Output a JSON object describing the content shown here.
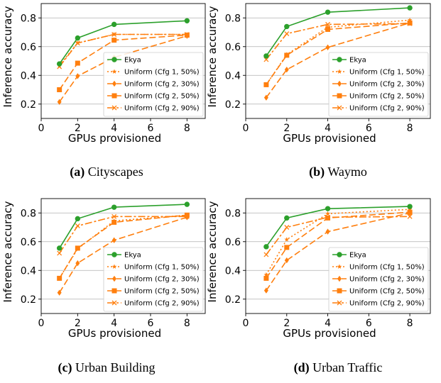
{
  "captions": [
    {
      "tag": "(a)",
      "text": "Cityscapes"
    },
    {
      "tag": "(b)",
      "text": "Waymo"
    },
    {
      "tag": "(c)",
      "text": "Urban Building"
    },
    {
      "tag": "(d)",
      "text": "Urban Traffic"
    }
  ],
  "chart_data": [
    {
      "type": "line",
      "title": "",
      "xlabel": "GPUs provisioned",
      "ylabel": "Inference accuracy",
      "x": [
        1,
        2,
        4,
        8
      ],
      "xlim": [
        0,
        9
      ],
      "ylim": [
        0.1,
        0.9
      ],
      "xticks": [
        "0",
        "2",
        "4",
        "6",
        "8"
      ],
      "yticks": [
        "0.2",
        "0.4",
        "0.6",
        "0.8"
      ],
      "grid": true,
      "legend": "lower-right",
      "series": [
        {
          "name": "Ekya",
          "color": "#2ca02c",
          "values": [
            0.48,
            0.66,
            0.755,
            0.78
          ]
        },
        {
          "name": "Uniform (Cfg 1, 50%)",
          "color": "#ff7f0e",
          "values": [
            0.47,
            0.625,
            0.685,
            0.685
          ]
        },
        {
          "name": "Uniform (Cfg 2, 30%)",
          "color": "#ff7f0e",
          "values": [
            0.215,
            0.395,
            0.525,
            0.675
          ]
        },
        {
          "name": "Uniform (Cfg 2, 50%)",
          "color": "#ff7f0e",
          "values": [
            0.3,
            0.485,
            0.645,
            0.68
          ]
        },
        {
          "name": "Uniform (Cfg 2, 90%)",
          "color": "#ff7f0e",
          "values": [
            0.46,
            0.625,
            0.685,
            0.685
          ]
        }
      ]
    },
    {
      "type": "line",
      "title": "",
      "xlabel": "GPUs provisioned",
      "ylabel": "Inference accuracy",
      "x": [
        1,
        2,
        4,
        8
      ],
      "xlim": [
        0,
        9
      ],
      "ylim": [
        0.1,
        0.9
      ],
      "xticks": [
        "0",
        "2",
        "4",
        "6",
        "8"
      ],
      "yticks": [
        "0.2",
        "0.4",
        "0.6",
        "0.8"
      ],
      "grid": true,
      "legend": "lower-right",
      "series": [
        {
          "name": "Ekya",
          "color": "#2ca02c",
          "values": [
            0.535,
            0.74,
            0.84,
            0.87
          ]
        },
        {
          "name": "Uniform (Cfg 1, 50%)",
          "color": "#ff7f0e",
          "values": [
            0.335,
            0.545,
            0.735,
            0.785
          ]
        },
        {
          "name": "Uniform (Cfg 2, 30%)",
          "color": "#ff7f0e",
          "values": [
            0.245,
            0.44,
            0.595,
            0.765
          ]
        },
        {
          "name": "Uniform (Cfg 2, 50%)",
          "color": "#ff7f0e",
          "values": [
            0.335,
            0.54,
            0.72,
            0.765
          ]
        },
        {
          "name": "Uniform (Cfg 2, 90%)",
          "color": "#ff7f0e",
          "values": [
            0.51,
            0.69,
            0.755,
            0.76
          ]
        }
      ]
    },
    {
      "type": "line",
      "title": "",
      "xlabel": "GPUs provisioned",
      "ylabel": "Inference accuracy",
      "x": [
        1,
        2,
        4,
        8
      ],
      "xlim": [
        0,
        9
      ],
      "ylim": [
        0.1,
        0.9
      ],
      "xticks": [
        "0",
        "2",
        "4",
        "6",
        "8"
      ],
      "yticks": [
        "0.2",
        "0.4",
        "0.6",
        "0.8"
      ],
      "grid": true,
      "legend": "lower-right",
      "series": [
        {
          "name": "Ekya",
          "color": "#2ca02c",
          "values": [
            0.555,
            0.76,
            0.84,
            0.86
          ]
        },
        {
          "name": "Uniform (Cfg 1, 50%)",
          "color": "#ff7f0e",
          "values": [
            0.345,
            0.55,
            0.745,
            0.785
          ]
        },
        {
          "name": "Uniform (Cfg 2, 30%)",
          "color": "#ff7f0e",
          "values": [
            0.245,
            0.45,
            0.61,
            0.77
          ]
        },
        {
          "name": "Uniform (Cfg 2, 50%)",
          "color": "#ff7f0e",
          "values": [
            0.345,
            0.555,
            0.735,
            0.785
          ]
        },
        {
          "name": "Uniform (Cfg 2, 90%)",
          "color": "#ff7f0e",
          "values": [
            0.52,
            0.71,
            0.775,
            0.775
          ]
        }
      ]
    },
    {
      "type": "line",
      "title": "",
      "xlabel": "GPUs provisioned",
      "ylabel": "Inference accuracy",
      "x": [
        1,
        2,
        4,
        8
      ],
      "xlim": [
        0,
        9
      ],
      "ylim": [
        0.1,
        0.9
      ],
      "xticks": [
        "0",
        "2",
        "4",
        "6",
        "8"
      ],
      "yticks": [
        "0.2",
        "0.4",
        "0.6",
        "0.8"
      ],
      "grid": true,
      "legend": "lower-right",
      "series": [
        {
          "name": "Ekya",
          "color": "#2ca02c",
          "values": [
            0.565,
            0.765,
            0.83,
            0.845
          ]
        },
        {
          "name": "Uniform (Cfg 1, 50%)",
          "color": "#ff7f0e",
          "values": [
            0.37,
            0.615,
            0.795,
            0.825
          ]
        },
        {
          "name": "Uniform (Cfg 2, 30%)",
          "color": "#ff7f0e",
          "values": [
            0.26,
            0.47,
            0.67,
            0.8
          ]
        },
        {
          "name": "Uniform (Cfg 2, 50%)",
          "color": "#ff7f0e",
          "values": [
            0.345,
            0.56,
            0.765,
            0.805
          ]
        },
        {
          "name": "Uniform (Cfg 2, 90%)",
          "color": "#ff7f0e",
          "values": [
            0.51,
            0.7,
            0.77,
            0.775
          ]
        }
      ]
    }
  ]
}
